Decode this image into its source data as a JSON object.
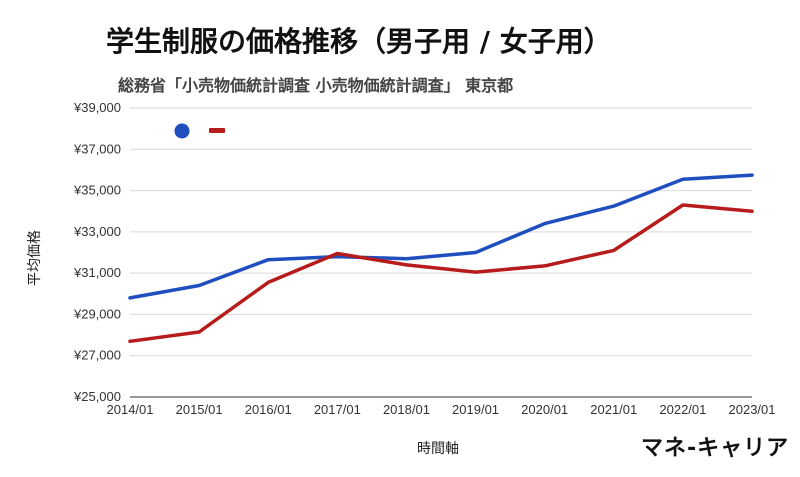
{
  "title": "学生制服の価格推移（男子用 / 女子用）",
  "subtitle": "総務省「小売物価統計調査 小売物価統計調査」 東京都",
  "brand": "マネ-キャリア",
  "chart_data": {
    "type": "line",
    "xlabel": "時間軸",
    "ylabel": "平均価格",
    "categories": [
      "2014/01",
      "2015/01",
      "2016/01",
      "2017/01",
      "2018/01",
      "2019/01",
      "2020/01",
      "2021/01",
      "2022/01",
      "2023/01"
    ],
    "series": [
      {
        "color": "#1f4fbf",
        "values": [
          29800,
          30400,
          31650,
          31800,
          31700,
          32000,
          33400,
          34250,
          35550,
          35750
        ]
      },
      {
        "color": "#b71c1c",
        "values": [
          27700,
          28150,
          30550,
          31950,
          31400,
          31050,
          31350,
          32100,
          34300,
          34000
        ]
      }
    ],
    "ylim": [
      25000,
      39000
    ],
    "yticks": [
      25000,
      27000,
      29000,
      31000,
      33000,
      35000,
      37000,
      39000
    ],
    "yticklabels": [
      "¥25,000",
      "¥27,000",
      "¥29,000",
      "¥31,000",
      "¥33,000",
      "¥35,000",
      "¥37,000",
      "¥39,000"
    ],
    "grid": true,
    "legend": "top-left"
  }
}
